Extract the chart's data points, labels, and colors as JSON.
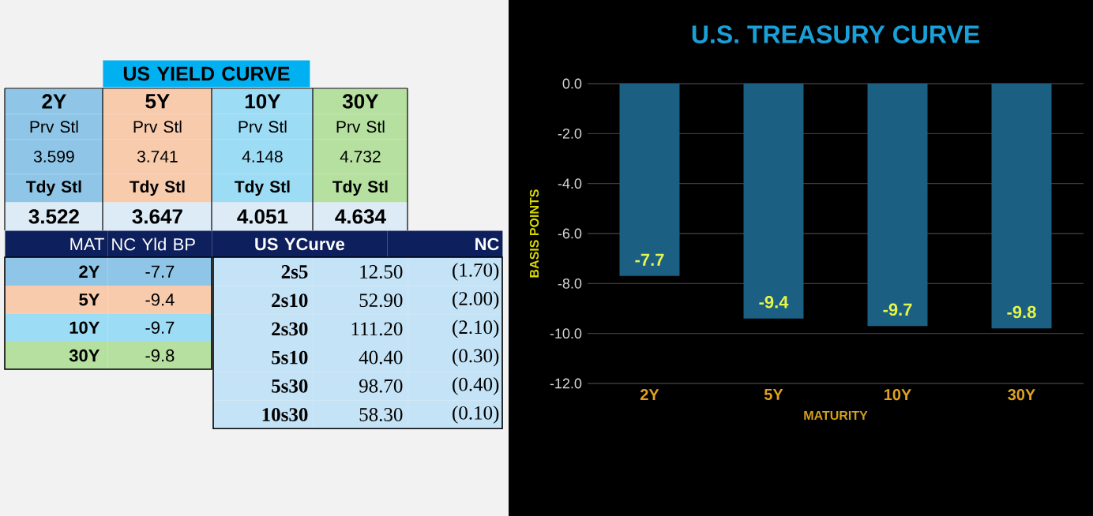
{
  "chart_data": [
    {
      "type": "other",
      "annotations": [
        "US YIELD CURVE",
        "2Y",
        "5Y",
        "10Y",
        "30Y",
        "Prv Stl",
        "Prv Stl",
        "Prv Stl",
        "Prv Stl",
        "3.599",
        "3.741",
        "4.148",
        "4.732",
        "Tdy Stl",
        "Tdy Stl",
        "Tdy Stl",
        "Tdy Stl",
        "3.522",
        "3.647",
        "4.051",
        "4.634",
        "MAT",
        "NC Yld  BP",
        "US YCurve",
        "NC",
        "2Y",
        "-7.7",
        "5Y",
        "-9.4",
        "10Y",
        "-9.7",
        "30Y",
        "-9.8",
        "2s5",
        "12.50",
        "(1.70)",
        "2s10",
        "52.90",
        "(2.00)",
        "2s30",
        "111.20",
        "(2.10)",
        "5s10",
        "40.40",
        "(0.30)",
        "5s30",
        "98.70",
        "(0.40)",
        "10s30",
        "58.30",
        "(0.10)"
      ]
    },
    {
      "type": "bar",
      "title": "U.S. TREASURY CURVE",
      "xlabel": "MATURITY",
      "ylabel": "BASIS POINTS",
      "categories": [
        "2Y",
        "5Y",
        "10Y",
        "30Y"
      ],
      "values": [
        -7.7,
        -9.4,
        -9.7,
        -9.8
      ],
      "color": "#1b5f82",
      "ylim": [
        -12,
        0
      ],
      "yticks": [
        {
          "value": -12,
          "label": "-12.0"
        },
        {
          "value": -10,
          "label": "-10.0"
        },
        {
          "value": -8,
          "label": "-8.0"
        },
        {
          "value": -6,
          "label": "-6.0"
        },
        {
          "value": -4,
          "label": "-4.0"
        },
        {
          "value": -2,
          "label": "-2.0"
        },
        {
          "value": 0,
          "label": "0.0"
        }
      ],
      "grid": "y",
      "data_labels": true
    }
  ]
}
